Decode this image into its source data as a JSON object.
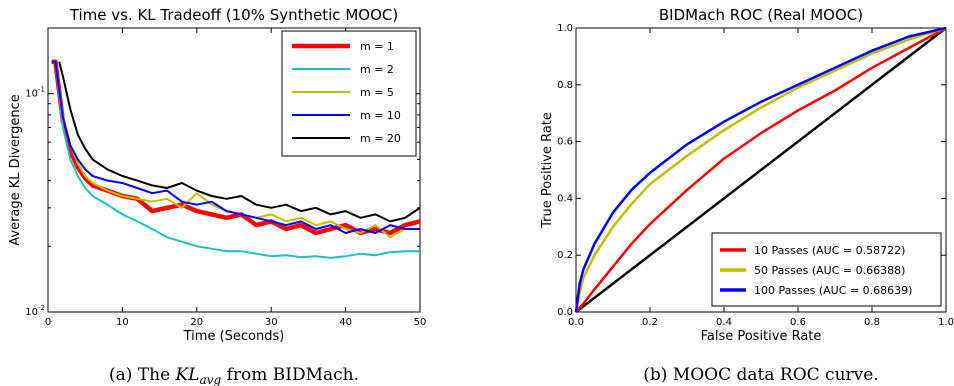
{
  "chart_data": [
    {
      "type": "line",
      "title": "Time vs. KL Tradeoff (10% Synthetic MOOC)",
      "xlabel": "Time (Seconds)",
      "ylabel": "Average KL Divergence",
      "xlim": [
        0,
        50
      ],
      "ylim": [
        0.01,
        0.2
      ],
      "yscale": "log",
      "xticks": [
        "0",
        "10",
        "20",
        "30",
        "40",
        "50"
      ],
      "yticks": [
        {
          "value": 0.1,
          "base": "10",
          "exp": "-1"
        },
        {
          "value": 0.01,
          "base": "10",
          "exp": "-2"
        }
      ],
      "grid": false,
      "legend_position": "top-right",
      "caption": {
        "prefix": "(a) The ",
        "math": "KL",
        "sub": "avg",
        "suffix": " from BIDMach."
      },
      "series": [
        {
          "name": "m = 1",
          "color": "#ff0000",
          "width": 4.5,
          "x": [
            0.5,
            1,
            2,
            3,
            4,
            5,
            6,
            8,
            10,
            12,
            14,
            16,
            18,
            20,
            22,
            24,
            26,
            28,
            30,
            32,
            34,
            36,
            38,
            40,
            42,
            44,
            46,
            48,
            50
          ],
          "y": [
            0.14,
            0.14,
            0.075,
            0.055,
            0.046,
            0.041,
            0.038,
            0.036,
            0.034,
            0.033,
            0.029,
            0.03,
            0.031,
            0.029,
            0.028,
            0.027,
            0.028,
            0.025,
            0.026,
            0.024,
            0.025,
            0.023,
            0.024,
            0.025,
            0.023,
            0.024,
            0.023,
            0.025,
            0.026
          ]
        },
        {
          "name": "m = 2",
          "color": "#1fbfbf",
          "width": 2,
          "x": [
            0.5,
            1,
            2,
            3,
            4,
            5,
            6,
            8,
            10,
            12,
            14,
            16,
            18,
            20,
            22,
            24,
            26,
            28,
            30,
            32,
            34,
            36,
            38,
            40,
            42,
            44,
            46,
            48,
            50
          ],
          "y": [
            0.14,
            0.14,
            0.07,
            0.05,
            0.042,
            0.037,
            0.034,
            0.031,
            0.028,
            0.026,
            0.024,
            0.022,
            0.021,
            0.02,
            0.0195,
            0.019,
            0.019,
            0.0185,
            0.018,
            0.0182,
            0.0178,
            0.018,
            0.0177,
            0.018,
            0.0185,
            0.0182,
            0.0188,
            0.019,
            0.019
          ]
        },
        {
          "name": "m = 5",
          "color": "#bfbf00",
          "width": 2,
          "x": [
            0.5,
            1,
            2,
            3,
            4,
            5,
            6,
            8,
            10,
            12,
            14,
            16,
            18,
            20,
            22,
            24,
            26,
            28,
            30,
            32,
            34,
            36,
            38,
            40,
            42,
            44,
            46,
            48,
            50
          ],
          "y": [
            0.14,
            0.14,
            0.08,
            0.058,
            0.048,
            0.042,
            0.039,
            0.036,
            0.034,
            0.033,
            0.032,
            0.033,
            0.03,
            0.035,
            0.031,
            0.029,
            0.028,
            0.027,
            0.028,
            0.026,
            0.027,
            0.025,
            0.026,
            0.024,
            0.023,
            0.025,
            0.022,
            0.024,
            0.024
          ]
        },
        {
          "name": "m = 10",
          "color": "#0000ff",
          "width": 2,
          "x": [
            0.5,
            1,
            2,
            3,
            4,
            5,
            6,
            8,
            10,
            12,
            14,
            16,
            18,
            20,
            22,
            24,
            26,
            28,
            30,
            32,
            34,
            36,
            38,
            40,
            42,
            44,
            46,
            48,
            50
          ],
          "y": [
            0.14,
            0.14,
            0.078,
            0.058,
            0.05,
            0.045,
            0.042,
            0.04,
            0.039,
            0.037,
            0.035,
            0.036,
            0.032,
            0.031,
            0.032,
            0.029,
            0.028,
            0.027,
            0.026,
            0.025,
            0.026,
            0.024,
            0.025,
            0.023,
            0.024,
            0.023,
            0.025,
            0.024,
            0.024
          ]
        },
        {
          "name": "m = 20",
          "color": "#000000",
          "width": 2,
          "x": [
            1.5,
            2,
            3,
            4,
            5,
            6,
            8,
            10,
            12,
            14,
            16,
            18,
            20,
            22,
            24,
            26,
            28,
            30,
            32,
            34,
            36,
            38,
            40,
            42,
            44,
            46,
            48,
            50
          ],
          "y": [
            0.14,
            0.12,
            0.085,
            0.065,
            0.056,
            0.05,
            0.045,
            0.042,
            0.04,
            0.038,
            0.037,
            0.039,
            0.036,
            0.034,
            0.033,
            0.034,
            0.031,
            0.03,
            0.031,
            0.029,
            0.03,
            0.028,
            0.029,
            0.027,
            0.028,
            0.026,
            0.027,
            0.03
          ]
        }
      ]
    },
    {
      "type": "line",
      "title": "BIDMach ROC (Real MOOC)",
      "xlabel": "False Positive Rate",
      "ylabel": "True Positive Rate",
      "xlim": [
        0,
        1
      ],
      "ylim": [
        0,
        1
      ],
      "xticks": [
        "0.0",
        "0.2",
        "0.4",
        "0.6",
        "0.8",
        "1.0"
      ],
      "yticks": [
        "0.0",
        "0.2",
        "0.4",
        "0.6",
        "0.8",
        "1.0"
      ],
      "grid": false,
      "legend_position": "bottom-right",
      "caption": "(b) MOOC data ROC curve.",
      "diagonal": {
        "color": "#000000"
      },
      "series": [
        {
          "name": "10 Passes (AUC = 0.58722)",
          "color": "#ff0000",
          "width": 2.5,
          "x": [
            0,
            0.02,
            0.05,
            0.1,
            0.15,
            0.2,
            0.3,
            0.4,
            0.5,
            0.6,
            0.7,
            0.8,
            0.9,
            1.0
          ],
          "y": [
            0,
            0.03,
            0.08,
            0.16,
            0.24,
            0.31,
            0.43,
            0.54,
            0.63,
            0.71,
            0.78,
            0.86,
            0.93,
            1.0
          ]
        },
        {
          "name": "50 Passes (AUC = 0.66388)",
          "color": "#bfbf00",
          "width": 2.5,
          "x": [
            0,
            0.01,
            0.02,
            0.05,
            0.1,
            0.15,
            0.2,
            0.3,
            0.4,
            0.5,
            0.6,
            0.7,
            0.8,
            0.9,
            1.0
          ],
          "y": [
            0,
            0.07,
            0.12,
            0.2,
            0.3,
            0.38,
            0.45,
            0.55,
            0.64,
            0.72,
            0.79,
            0.85,
            0.91,
            0.96,
            1.0
          ]
        },
        {
          "name": "100 Passes (AUC = 0.68639)",
          "color": "#0000ff",
          "width": 2.5,
          "x": [
            0,
            0.01,
            0.02,
            0.05,
            0.1,
            0.15,
            0.2,
            0.3,
            0.4,
            0.5,
            0.6,
            0.7,
            0.8,
            0.9,
            1.0
          ],
          "y": [
            0,
            0.1,
            0.15,
            0.24,
            0.35,
            0.43,
            0.49,
            0.59,
            0.67,
            0.74,
            0.8,
            0.86,
            0.92,
            0.97,
            1.0
          ]
        }
      ]
    }
  ]
}
